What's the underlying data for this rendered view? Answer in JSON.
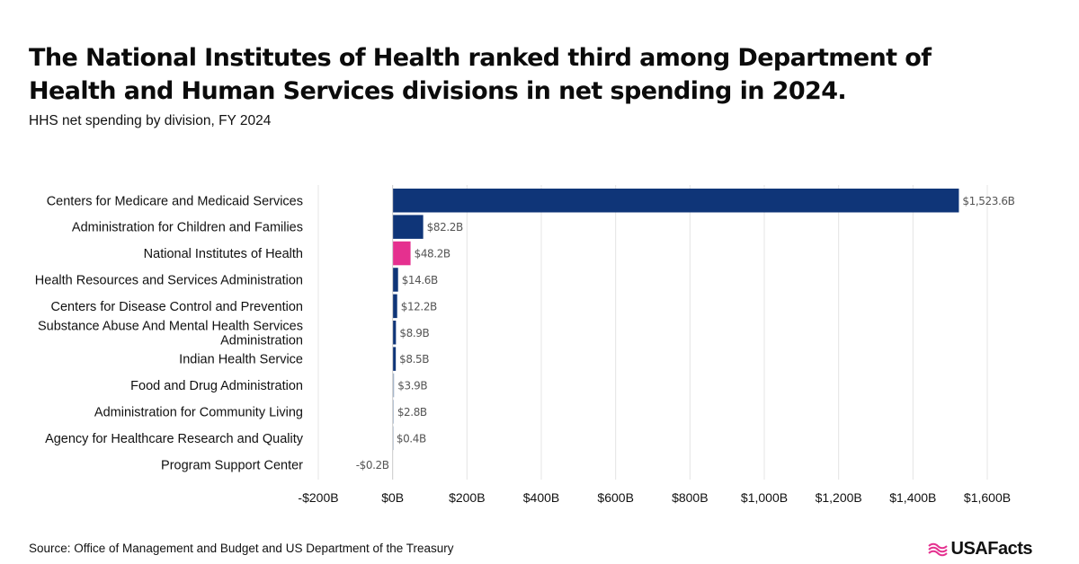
{
  "header": {
    "title": "The National Institutes of Health ranked third among Department of Health and Human Services divisions in net spending in 2024.",
    "subtitle": "HHS net spending by division, FY 2024"
  },
  "footer": {
    "source": "Source: Office of Management and Budget and US Department of the Treasury",
    "brand": "USAFacts"
  },
  "colors": {
    "primary": "#0f3578",
    "highlight": "#e5308f",
    "small_bar": "#9fb1c9",
    "grid": "#e4e4e4"
  },
  "chart_data": {
    "type": "bar",
    "orientation": "horizontal",
    "title": "",
    "xlabel": "",
    "ylabel": "",
    "xlim": [
      -200,
      1600
    ],
    "unit": "billions of dollars",
    "grid": true,
    "categories": [
      "Centers for Medicare and Medicaid Services",
      "Administration for Children and Families",
      "National Institutes of Health",
      "Health Resources and Services Administration",
      "Centers for Disease Control and Prevention",
      "Substance Abuse And Mental Health Services Administration",
      "Indian Health Service",
      "Food and Drug Administration",
      "Administration for Community Living",
      "Agency for Healthcare Research and Quality",
      "Program Support Center"
    ],
    "values": [
      1523.6,
      82.2,
      48.2,
      14.6,
      12.2,
      8.9,
      8.5,
      3.9,
      2.8,
      0.4,
      -0.2
    ],
    "value_labels": [
      "$1,523.6B",
      "$82.2B",
      "$48.2B",
      "$14.6B",
      "$12.2B",
      "$8.9B",
      "$8.5B",
      "$3.9B",
      "$2.8B",
      "$0.4B",
      "-$0.2B"
    ],
    "highlight_index": 2,
    "x_ticks": [
      -200,
      0,
      200,
      400,
      600,
      800,
      1000,
      1200,
      1400,
      1600
    ],
    "x_tick_labels": [
      "-$200B",
      "$0B",
      "$200B",
      "$400B",
      "$600B",
      "$800B",
      "$1,000B",
      "$1,200B",
      "$1,400B",
      "$1,600B"
    ]
  }
}
